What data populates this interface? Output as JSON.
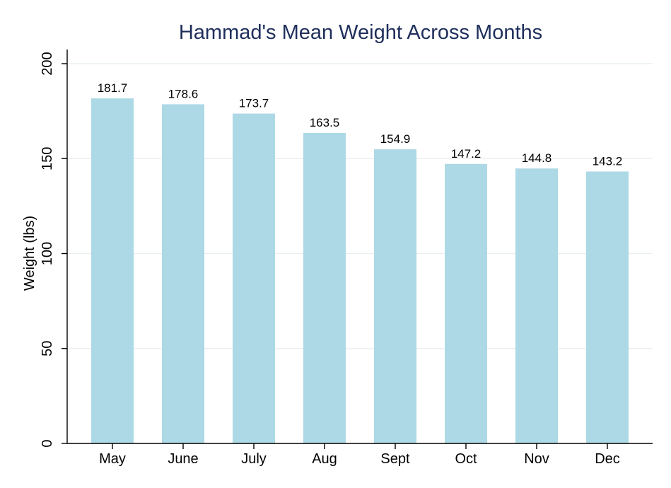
{
  "colors": {
    "bar": "#add8e6",
    "title": "#1f2f5c",
    "grid": "#e8eef1",
    "axis": "#000000"
  },
  "chart_data": {
    "type": "bar",
    "title": "Hammad's Mean Weight Across Months",
    "xlabel": "",
    "ylabel": "Weight (lbs)",
    "categories": [
      "May",
      "June",
      "July",
      "Aug",
      "Sept",
      "Oct",
      "Nov",
      "Dec"
    ],
    "values": [
      181.7,
      178.6,
      173.7,
      163.5,
      154.9,
      147.2,
      144.8,
      143.2
    ],
    "data_labels": [
      "181.7",
      "178.6",
      "173.7",
      "163.5",
      "154.9",
      "147.2",
      "144.8",
      "143.2"
    ],
    "ylim": [
      0,
      200
    ],
    "yticks": [
      0,
      50,
      100,
      150,
      200
    ],
    "ytick_labels": [
      "0",
      "50",
      "100",
      "150",
      "200"
    ],
    "grid": true,
    "legend": "none"
  }
}
